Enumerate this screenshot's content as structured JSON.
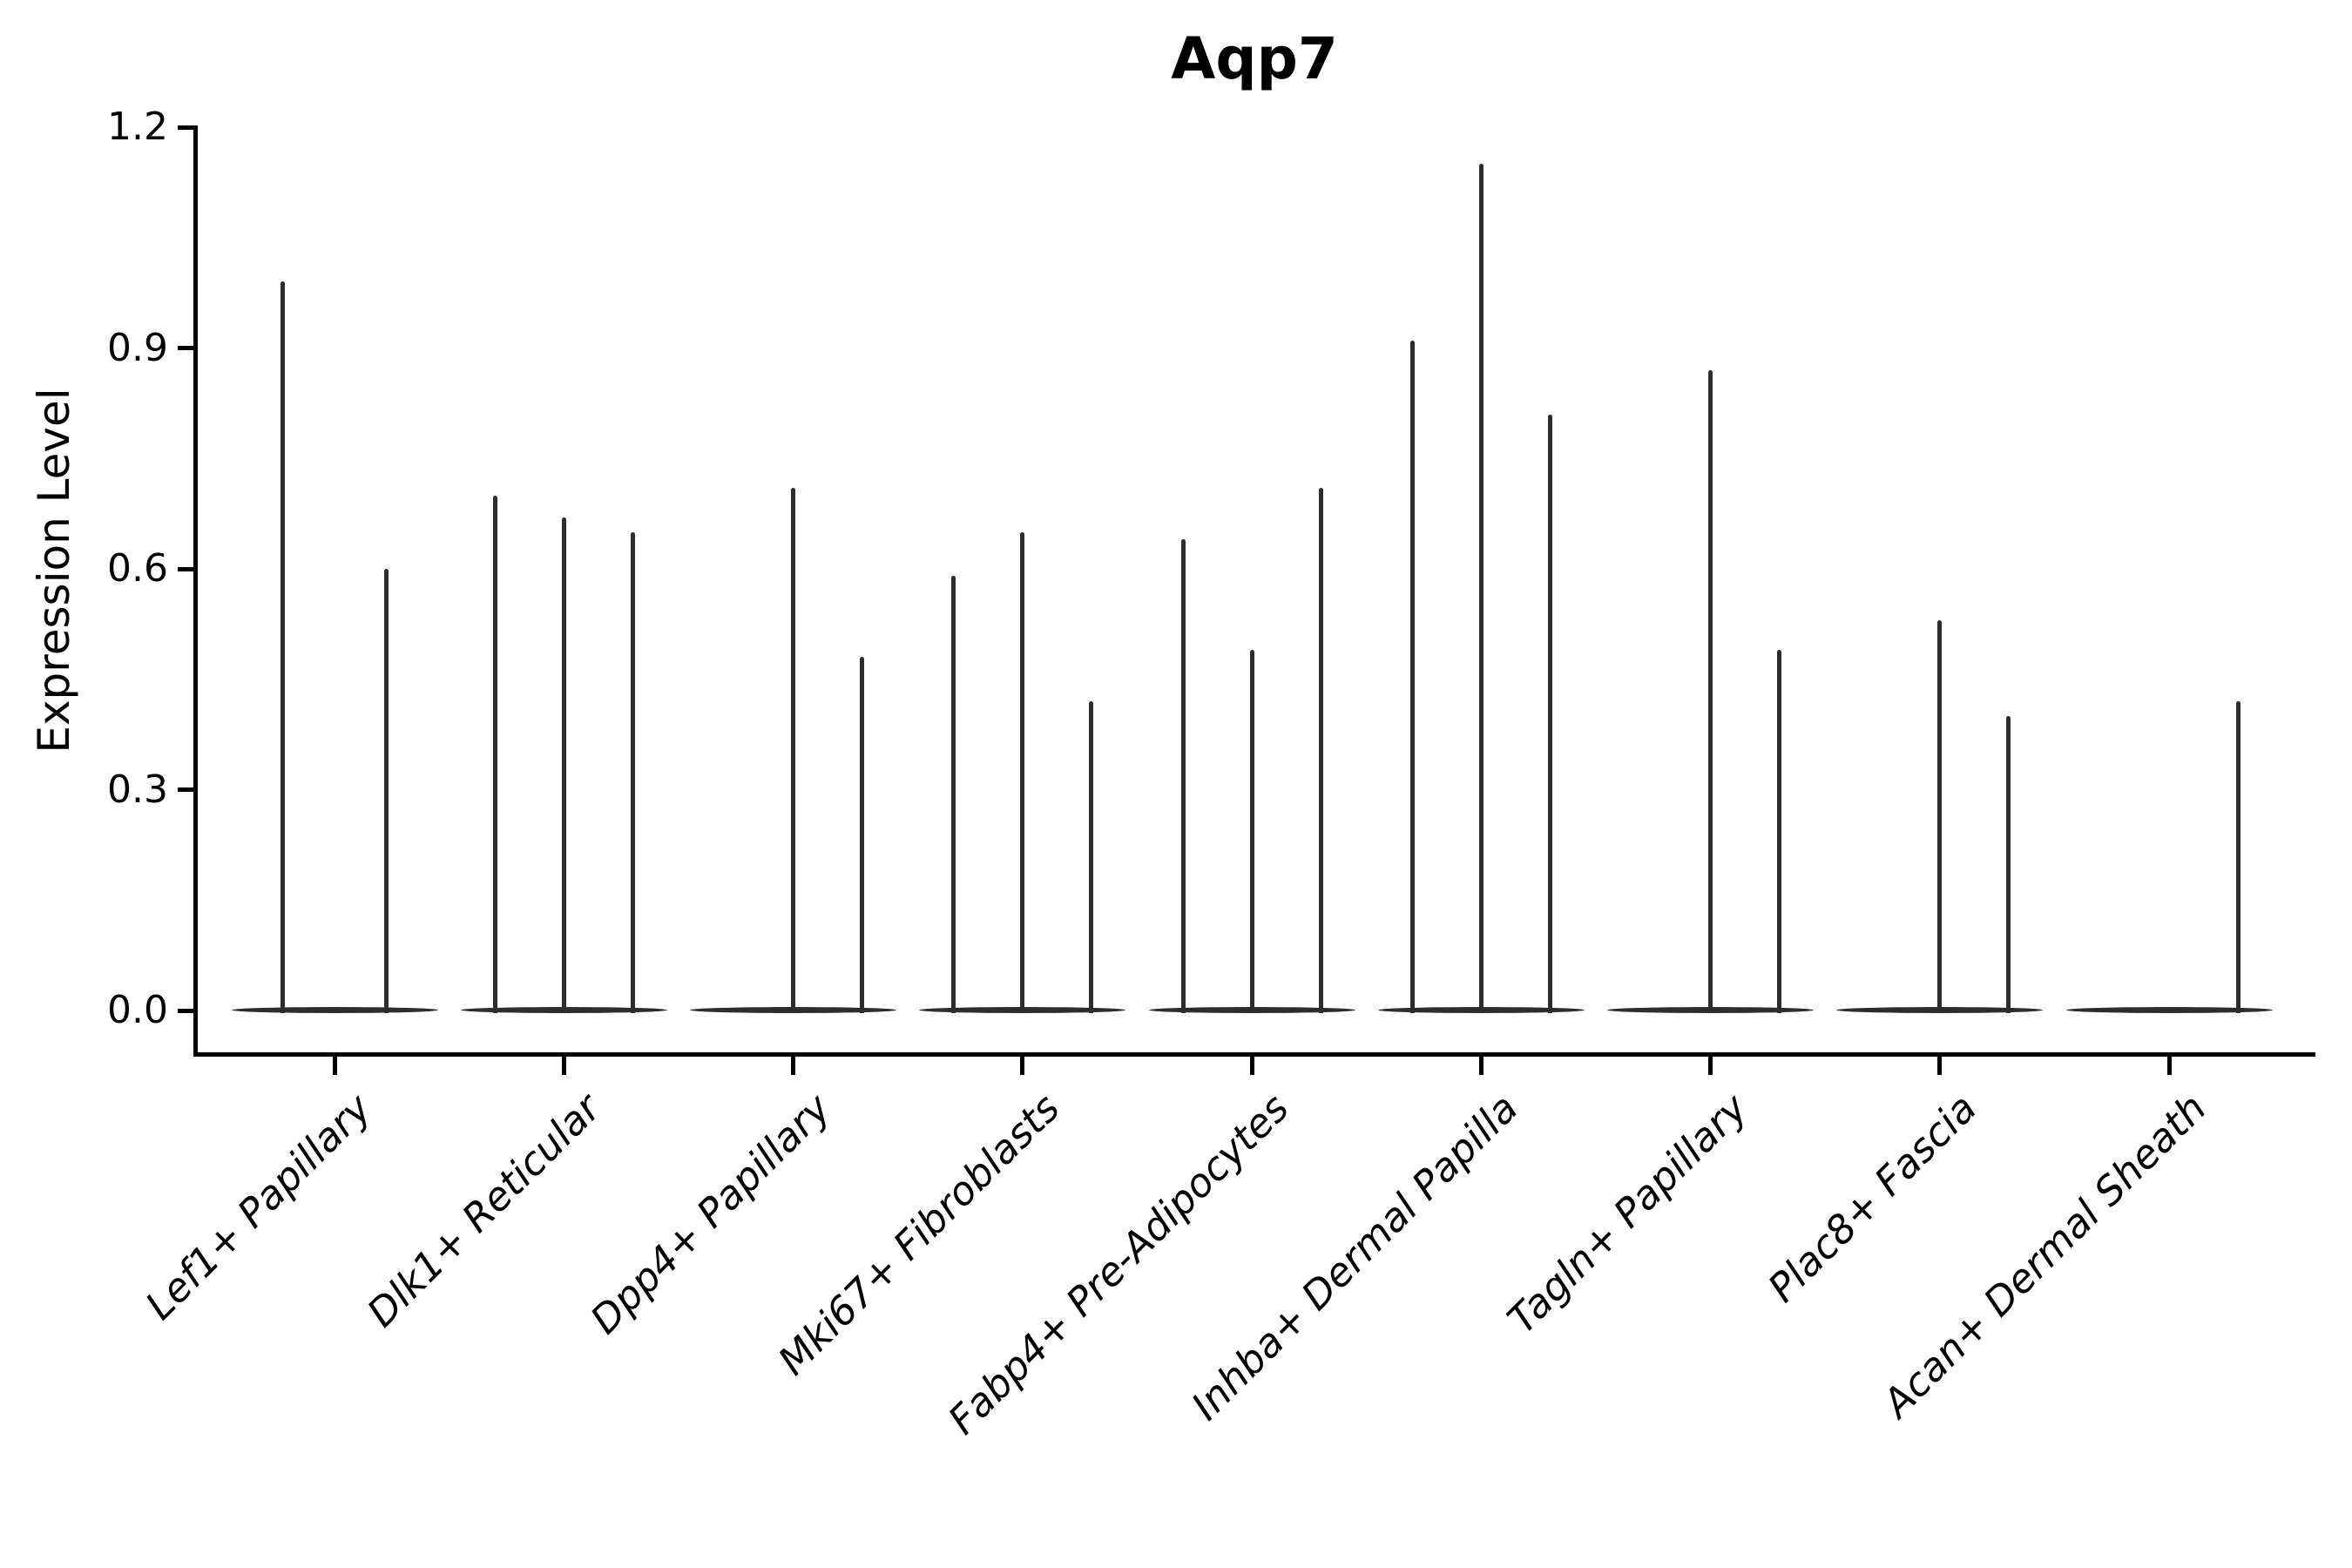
{
  "chart_data": {
    "type": "violin",
    "title": "Aqp7",
    "ylabel": "Expression Level",
    "xlabel": "",
    "ylim": [
      0.0,
      1.2
    ],
    "ytick_labels": [
      "0.0",
      "0.3",
      "0.6",
      "0.9",
      "1.2"
    ],
    "ytick_values": [
      0.0,
      0.3,
      0.6,
      0.9,
      1.2
    ],
    "grid": false,
    "legend": "none",
    "categories": [
      "Lef1+ Papillary",
      "Dlk1+ Reticular",
      "Dpp4+ Papillary",
      "Mki67+ Fibroblasts",
      "Fabp4+ Pre-Adipocytes",
      "Inhba+ Dermal Papilla",
      "Tagln+ Papillary",
      "Plac8+ Fascia",
      "Acan+ Dermal Sheath"
    ],
    "groups": [
      {
        "category": "Lef1+ Papillary",
        "n_slots": 2,
        "spikes": [
          {
            "slot": 0,
            "value": 0.99
          },
          {
            "slot": 1,
            "value": 0.6
          }
        ]
      },
      {
        "category": "Dlk1+ Reticular",
        "n_slots": 3,
        "spikes": [
          {
            "slot": 0,
            "value": 0.7
          },
          {
            "slot": 1,
            "value": 0.67
          },
          {
            "slot": 2,
            "value": 0.65
          }
        ]
      },
      {
        "category": "Dpp4+ Papillary",
        "n_slots": 3,
        "spikes": [
          {
            "slot": 1,
            "value": 0.71
          },
          {
            "slot": 2,
            "value": 0.48
          }
        ]
      },
      {
        "category": "Mki67+ Fibroblasts",
        "n_slots": 3,
        "spikes": [
          {
            "slot": 0,
            "value": 0.59
          },
          {
            "slot": 1,
            "value": 0.65
          },
          {
            "slot": 2,
            "value": 0.42
          }
        ]
      },
      {
        "category": "Fabp4+ Pre-Adipocytes",
        "n_slots": 3,
        "spikes": [
          {
            "slot": 0,
            "value": 0.64
          },
          {
            "slot": 1,
            "value": 0.49
          },
          {
            "slot": 2,
            "value": 0.71
          }
        ]
      },
      {
        "category": "Inhba+ Dermal Papilla",
        "n_slots": 3,
        "spikes": [
          {
            "slot": 0,
            "value": 0.91
          },
          {
            "slot": 1,
            "value": 1.15
          },
          {
            "slot": 2,
            "value": 0.81
          }
        ]
      },
      {
        "category": "Tagln+ Papillary",
        "n_slots": 3,
        "spikes": [
          {
            "slot": 1,
            "value": 0.87
          },
          {
            "slot": 2,
            "value": 0.49
          }
        ]
      },
      {
        "category": "Plac8+ Fascia",
        "n_slots": 3,
        "spikes": [
          {
            "slot": 1,
            "value": 0.53
          },
          {
            "slot": 2,
            "value": 0.4
          }
        ]
      },
      {
        "category": "Acan+ Dermal Sheath",
        "n_slots": 3,
        "spikes": [
          {
            "slot": 2,
            "value": 0.42
          }
        ]
      }
    ],
    "colors": {
      "spike": "#2d2d2d",
      "axis": "#000000",
      "text": "#000000",
      "background": "#ffffff"
    }
  }
}
